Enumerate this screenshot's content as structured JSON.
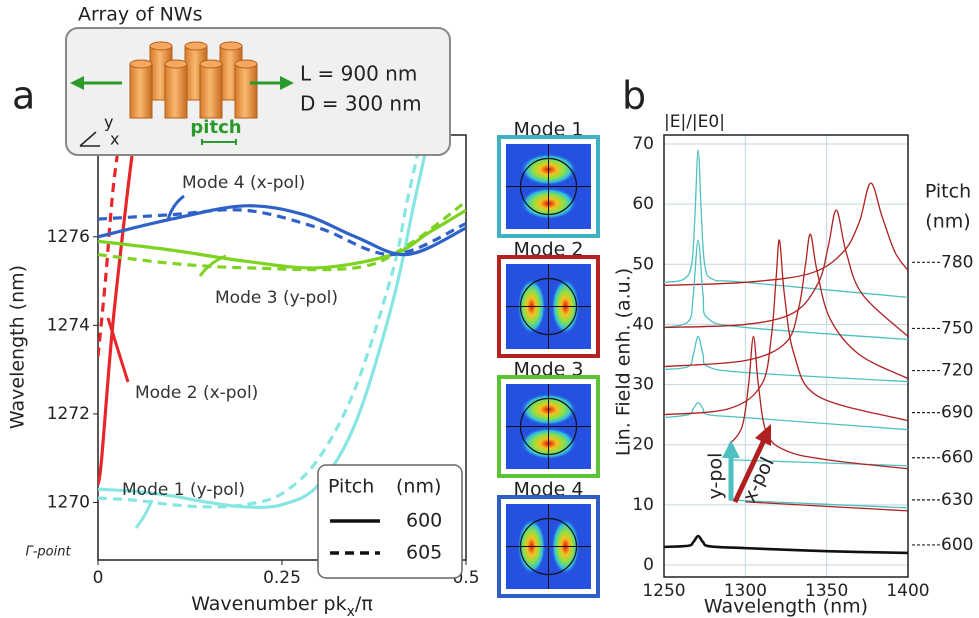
{
  "chart_data": [
    {
      "type": "line",
      "panel": "a",
      "x_label_parts": [
        "Wavenumber pk",
        "x",
        "/π"
      ],
      "y_label": "Wavelength (nm)",
      "origin_label": "Γ-point",
      "xlim": [
        0,
        0.5
      ],
      "xticks": [
        0,
        0.25,
        0.5
      ],
      "ylim": [
        1268.7,
        1278.3
      ],
      "yticks": [
        1270,
        1272,
        1274,
        1276
      ],
      "legend": {
        "title": "Pitch",
        "unit": "(nm)",
        "position": "lower right",
        "entries": [
          {
            "label": "600",
            "dash": "solid"
          },
          {
            "label": "605",
            "dash": "dashed"
          }
        ]
      },
      "series": [
        {
          "name": "Mode 1 (y-pol)",
          "color": "#86e6e2",
          "lines": [
            {
              "x": [
                0,
                0.05,
                0.1,
                0.15,
                0.2,
                0.25,
                0.3,
                0.35,
                0.4,
                0.43,
                0.45
              ],
              "values": [
                1270.3,
                1270.25,
                1270.15,
                1270.0,
                1269.9,
                1269.95,
                1270.4,
                1271.8,
                1274.5,
                1276.8,
                1278.3
              ]
            },
            {
              "x": [
                0,
                0.05,
                0.1,
                0.15,
                0.2,
                0.25,
                0.3,
                0.35,
                0.4,
                0.42,
                0.44
              ],
              "values": [
                1270.1,
                1270.05,
                1269.95,
                1269.9,
                1269.95,
                1270.2,
                1271.0,
                1272.6,
                1275.2,
                1276.8,
                1278.3
              ]
            }
          ]
        },
        {
          "name": "Mode 2 (x-pol)",
          "color": "#e8262a",
          "lines": [
            {
              "x": [
                0,
                0.005,
                0.02,
                0.04,
                0.05
              ],
              "values": [
                1270.4,
                1271,
                1274,
                1277,
                1278.3
              ]
            },
            {
              "x": [
                0,
                0.01,
                0.02,
                0.03
              ],
              "values": [
                1273.3,
                1275,
                1277,
                1278.3
              ]
            }
          ]
        },
        {
          "name": "Mode 3 (y-pol)",
          "color": "#7ed321",
          "lines": [
            {
              "x": [
                0,
                0.1,
                0.2,
                0.3,
                0.4,
                0.45,
                0.5
              ],
              "values": [
                1275.9,
                1275.7,
                1275.45,
                1275.3,
                1275.6,
                1276.1,
                1276.6
              ]
            },
            {
              "x": [
                0,
                0.1,
                0.2,
                0.35,
                0.42,
                0.5
              ],
              "values": [
                1275.6,
                1275.4,
                1275.3,
                1275.3,
                1275.8,
                1276.8
              ]
            }
          ]
        },
        {
          "name": "Mode 4 (x-pol)",
          "color": "#2f62c8",
          "lines": [
            {
              "x": [
                0,
                0.1,
                0.2,
                0.28,
                0.35,
                0.42,
                0.5
              ],
              "values": [
                1276.0,
                1276.4,
                1276.7,
                1276.5,
                1276.0,
                1275.6,
                1276.2
              ]
            },
            {
              "x": [
                0,
                0.1,
                0.2,
                0.3,
                0.4,
                0.5
              ],
              "values": [
                1276.4,
                1276.5,
                1276.6,
                1276.2,
                1275.6,
                1276.3
              ]
            }
          ]
        }
      ]
    },
    {
      "type": "line",
      "panel": "b",
      "title": "|E|/|E0|",
      "x_label": "Wavelength (nm)",
      "y_label": "Lin. Field enh. (a.u.)",
      "xlim": [
        1250,
        1400
      ],
      "xticks": [
        1250,
        1300,
        1350,
        1400
      ],
      "ylim": [
        -2,
        71.5
      ],
      "yticks": [
        0,
        10,
        20,
        30,
        40,
        50,
        60,
        70
      ],
      "grid": true,
      "pitch_title": "Pitch",
      "pitch_unit": "(nm)",
      "polarizations": [
        {
          "name": "y-pol",
          "color": "#4fc0c0"
        },
        {
          "name": "x-pol",
          "color": "#b02020"
        }
      ],
      "groups": [
        {
          "pitch": "780",
          "y_pol": {
            "x": [
              1250,
              1262,
              1267,
              1269,
              1271,
              1273,
              1275,
              1280,
              1300,
              1400
            ],
            "values": [
              47,
              47.5,
              50,
              58,
              69,
              58,
              50,
              47.5,
              47,
              44.5
            ]
          },
          "x_pol": {
            "x": [
              1250,
              1300,
              1340,
              1360,
              1370,
              1377,
              1384,
              1392,
              1400
            ],
            "values": [
              46.5,
              47,
              48.5,
              52,
              57,
              63.5,
              58,
              52,
              49
            ]
          }
        },
        {
          "pitch": "750",
          "y_pol": {
            "x": [
              1250,
              1265,
              1268,
              1271,
              1274,
              1277,
              1300,
              1400
            ],
            "values": [
              39.5,
              40.5,
              45,
              54,
              45,
              41,
              39.5,
              37.5
            ]
          },
          "x_pol": {
            "x": [
              1250,
              1300,
              1330,
              1345,
              1351,
              1356,
              1362,
              1372,
              1400
            ],
            "values": [
              39.5,
              40,
              42,
              47,
              53,
              59,
              52,
              45,
              38
            ]
          }
        },
        {
          "pitch": "720",
          "y_pol": {
            "x": [
              1250,
              1265,
              1268,
              1271,
              1274,
              1277,
              1300,
              1400
            ],
            "values": [
              32.5,
              33,
              35,
              38,
              35,
              33,
              32,
              30.5
            ]
          },
          "x_pol": {
            "x": [
              1250,
              1300,
              1325,
              1333,
              1337,
              1340,
              1344,
              1352,
              1370,
              1400
            ],
            "values": [
              33,
              34,
              37,
              43,
              50,
              55,
              49,
              41,
              35,
              31
            ]
          }
        },
        {
          "pitch": "690",
          "y_pol": {
            "x": [
              1250,
              1265,
              1268,
              1271,
              1274,
              1277,
              1300,
              1400
            ],
            "values": [
              24.5,
              25,
              26,
              27,
              26,
              25,
              24.5,
              22.5
            ]
          },
          "x_pol": {
            "x": [
              1250,
              1290,
              1310,
              1316,
              1319,
              1321,
              1324,
              1330,
              1345,
              1400
            ],
            "values": [
              25,
              26,
              30,
              38,
              48,
              54,
              45,
              35,
              28,
              24
            ]
          }
        },
        {
          "pitch": "660",
          "y_pol": {
            "x": [
              1290,
              1400
            ],
            "values": [
              17.5,
              16.5
            ]
          },
          "x_pol": {
            "x": [
              1290,
              1298,
              1302,
              1305,
              1308,
              1313,
              1325,
              1350,
              1400
            ],
            "values": [
              20,
              23,
              30,
              38,
              30,
              22,
              19,
              17.5,
              16
            ]
          }
        },
        {
          "pitch": "630",
          "y_pol": {
            "x": [
              1290,
              1400
            ],
            "values": [
              10.8,
              9.5
            ]
          },
          "x_pol": {
            "x": [
              1300,
              1400
            ],
            "values": [
              10.5,
              9
            ]
          }
        },
        {
          "pitch": "600",
          "color": "#111111",
          "both": {
            "x": [
              1250,
              1265,
              1268,
              1271,
              1274,
              1278,
              1300,
              1350,
              1400
            ],
            "values": [
              3,
              3.2,
              3.8,
              4.8,
              3.8,
              3.1,
              2.8,
              2.3,
              2.0
            ]
          }
        }
      ]
    }
  ],
  "inset": {
    "title": "Array of NWs",
    "length": "L = 900 nm",
    "diameter": "D = 300 nm",
    "pitch": "pitch",
    "axis_y": "y",
    "axis_x": "x"
  },
  "modes": [
    {
      "label": "Mode 1",
      "color": "#3fb1c2",
      "lobes": "vertical"
    },
    {
      "label": "Mode 2",
      "color": "#b52222",
      "lobes": "horizontal"
    },
    {
      "label": "Mode 3",
      "color": "#5cc238",
      "lobes": "vertical"
    },
    {
      "label": "Mode 4",
      "color": "#2f5fc4",
      "lobes": "horizontal"
    }
  ]
}
